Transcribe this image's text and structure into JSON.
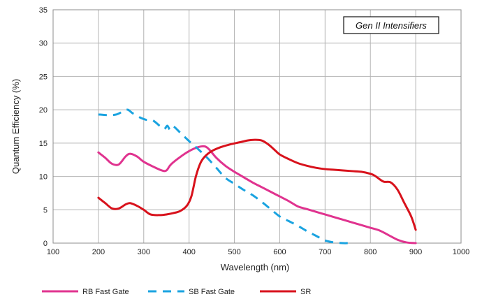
{
  "chart_data": {
    "type": "line",
    "title": "",
    "annotation": "Gen II Intensifiers",
    "xlabel": "Wavelength (nm)",
    "ylabel": "Quantum Efficiency (%)",
    "xlim": [
      100,
      1000
    ],
    "ylim": [
      0,
      35
    ],
    "x_ticks": [
      100,
      200,
      300,
      400,
      500,
      600,
      700,
      800,
      900,
      1000
    ],
    "y_ticks": [
      0,
      5,
      10,
      15,
      20,
      25,
      30,
      35
    ],
    "grid": true,
    "legend_position": "bottom",
    "series": [
      {
        "name": "RB Fast Gate",
        "color": "#e0338f",
        "dash": "solid",
        "x": [
          200,
          215,
          230,
          245,
          260,
          270,
          285,
          300,
          320,
          340,
          350,
          360,
          380,
          400,
          420,
          435,
          445,
          460,
          480,
          500,
          520,
          540,
          560,
          580,
          600,
          620,
          640,
          660,
          680,
          700,
          720,
          740,
          760,
          780,
          800,
          820,
          840,
          860,
          880,
          900
        ],
        "y": [
          13.6,
          12.8,
          11.9,
          11.8,
          13.0,
          13.4,
          13.0,
          12.2,
          11.5,
          10.9,
          10.9,
          11.8,
          12.9,
          13.8,
          14.4,
          14.5,
          14.0,
          12.8,
          11.6,
          10.7,
          9.9,
          9.1,
          8.4,
          7.7,
          7.0,
          6.3,
          5.5,
          5.1,
          4.7,
          4.3,
          3.9,
          3.5,
          3.1,
          2.7,
          2.3,
          1.9,
          1.2,
          0.5,
          0.1,
          0.0
        ]
      },
      {
        "name": "SB Fast Gate",
        "color": "#1aa3e0",
        "dash": "dashed",
        "x": [
          200,
          220,
          240,
          255,
          265,
          275,
          290,
          305,
          320,
          335,
          345,
          352,
          358,
          365,
          380,
          400,
          420,
          440,
          460,
          480,
          500,
          520,
          540,
          560,
          580,
          600,
          620,
          640,
          660,
          680,
          700,
          720,
          740,
          750
        ],
        "y": [
          19.3,
          19.2,
          19.3,
          19.8,
          20.0,
          19.5,
          18.9,
          18.5,
          18.4,
          17.6,
          17.1,
          17.6,
          17.0,
          17.5,
          16.6,
          15.3,
          14.1,
          12.8,
          11.3,
          9.8,
          8.9,
          8.0,
          7.2,
          6.2,
          5.1,
          4.0,
          3.3,
          2.6,
          1.8,
          1.1,
          0.4,
          0.1,
          0.0,
          0.0
        ]
      },
      {
        "name": "SR",
        "color": "#d8121c",
        "dash": "solid",
        "x": [
          200,
          215,
          230,
          245,
          260,
          270,
          285,
          300,
          315,
          335,
          350,
          365,
          380,
          395,
          405,
          415,
          425,
          435,
          450,
          470,
          490,
          510,
          530,
          545,
          560,
          575,
          590,
          600,
          620,
          640,
          660,
          680,
          700,
          720,
          740,
          760,
          780,
          800,
          810,
          820,
          830,
          845,
          860,
          875,
          890,
          900
        ],
        "y": [
          6.8,
          6.0,
          5.2,
          5.2,
          5.8,
          6.0,
          5.6,
          5.0,
          4.3,
          4.2,
          4.3,
          4.5,
          4.8,
          5.6,
          7.0,
          10.0,
          12.0,
          13.0,
          13.8,
          14.4,
          14.8,
          15.1,
          15.4,
          15.5,
          15.4,
          14.8,
          13.9,
          13.3,
          12.6,
          12.0,
          11.6,
          11.3,
          11.1,
          11.0,
          10.9,
          10.8,
          10.7,
          10.4,
          10.1,
          9.6,
          9.2,
          9.1,
          8.0,
          6.0,
          4.0,
          2.0
        ]
      }
    ]
  }
}
